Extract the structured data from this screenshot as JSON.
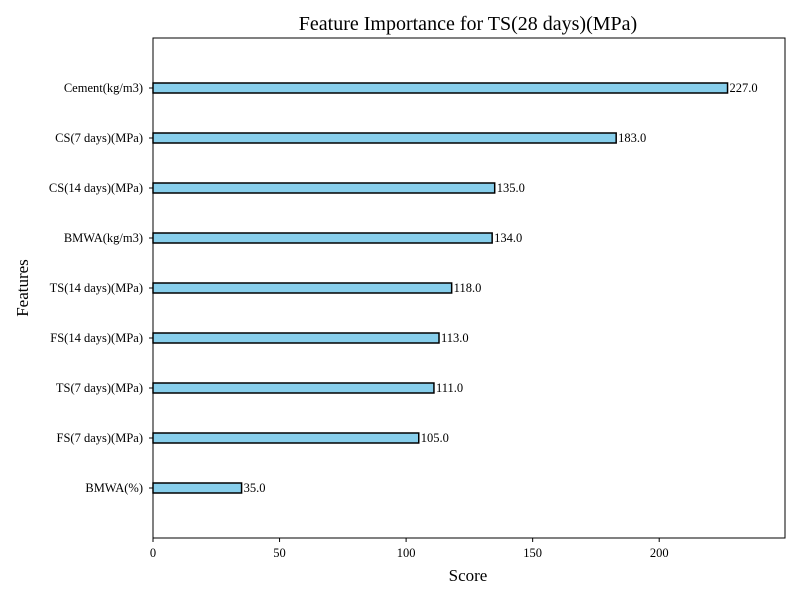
{
  "chart_data": {
    "type": "bar",
    "orientation": "horizontal",
    "title": "Feature Importance for TS(28 days)(MPa)",
    "xlabel": "Score",
    "ylabel": "Features",
    "categories": [
      "Cement(kg/m3)",
      "CS(7 days)(MPa)",
      "CS(14 days)(MPa)",
      "BMWA(kg/m3)",
      "TS(14 days)(MPa)",
      "FS(14 days)(MPa)",
      "TS(7 days)(MPa)",
      "FS(7 days)(MPa)",
      "BMWA(%)"
    ],
    "values": [
      227.0,
      183.0,
      135.0,
      134.0,
      118.0,
      113.0,
      111.0,
      105.0,
      35.0
    ],
    "value_labels": [
      "227.0",
      "183.0",
      "135.0",
      "134.0",
      "118.0",
      "113.0",
      "111.0",
      "105.0",
      "35.0"
    ],
    "xticks": [
      0,
      50,
      100,
      150,
      200
    ],
    "xtick_labels": [
      "0",
      "50",
      "100",
      "150",
      "200"
    ],
    "xlim": [
      0,
      249.7
    ],
    "grid": false,
    "bar_color": "#87ceeb",
    "bar_edge_color": "#000000"
  }
}
